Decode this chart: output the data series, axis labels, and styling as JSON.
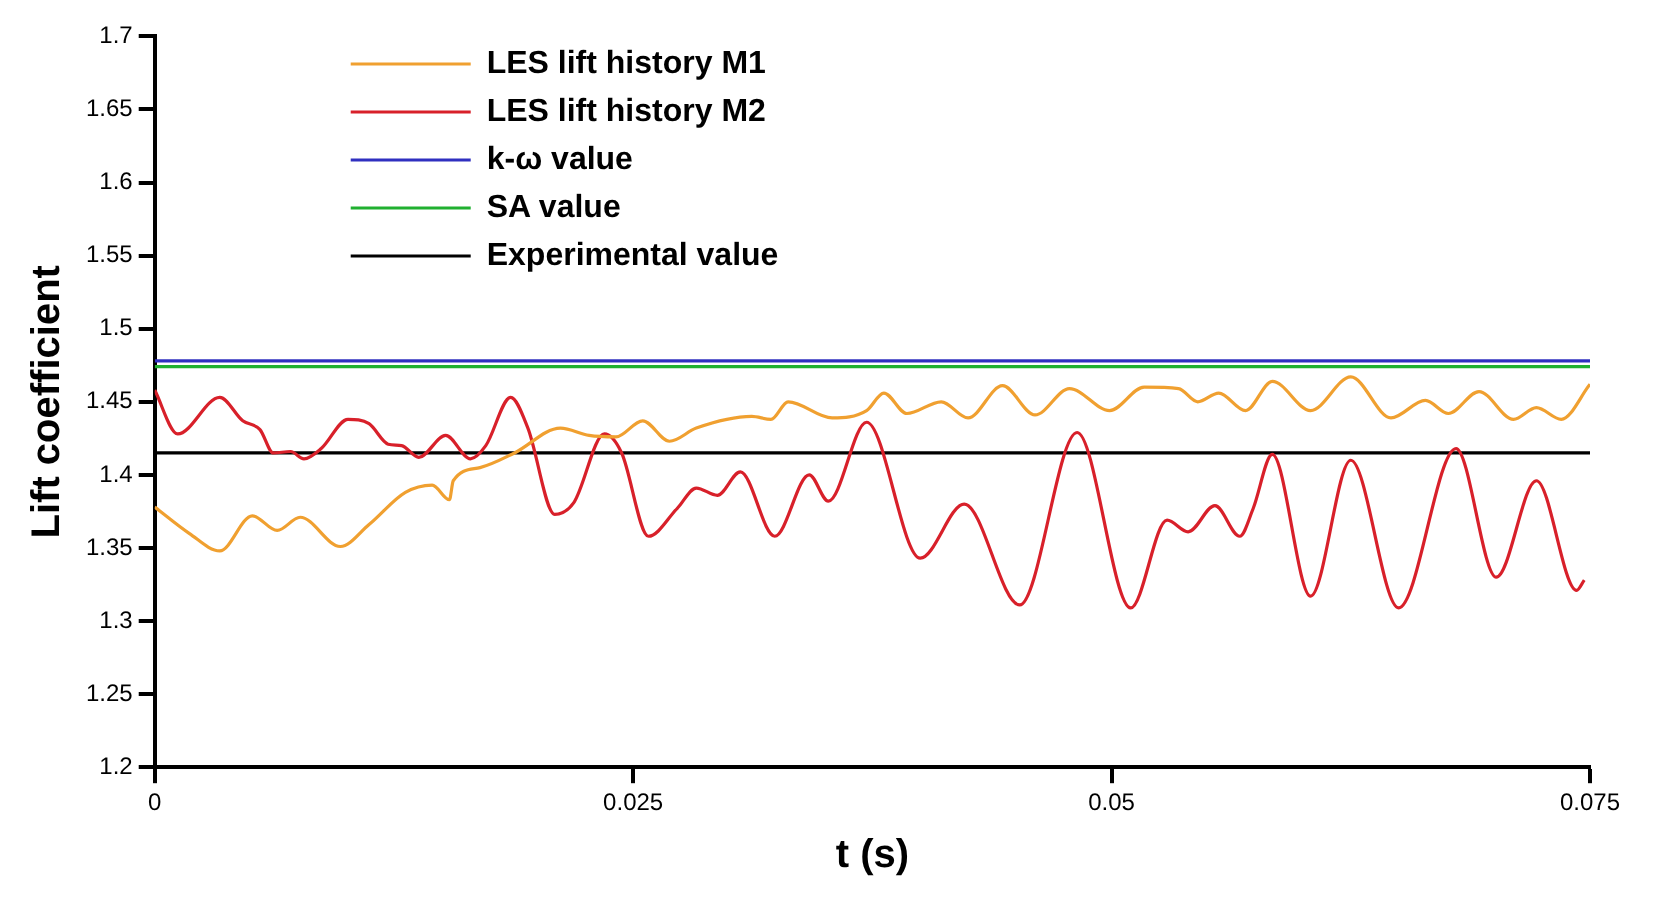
{
  "chart_data": {
    "type": "line",
    "xlabel": "t (s)",
    "ylabel": "Lift coefficient",
    "xlim": [
      0,
      0.075
    ],
    "xticks": [
      0,
      0.025,
      0.05,
      0.075
    ],
    "ylim": [
      1.2,
      1.7
    ],
    "yticks": [
      1.2,
      1.25,
      1.3,
      1.35,
      1.4,
      1.45,
      1.5,
      1.55,
      1.6,
      1.65,
      1.7
    ],
    "grid": false,
    "legend": "top left",
    "marker": "none",
    "line_style": "solid",
    "series": [
      {
        "name": "LES lift history M1",
        "color": "#f0a030",
        "x": [
          0,
          0.0018,
          0.0034,
          0.0051,
          0.0064,
          0.0076,
          0.0097,
          0.0112,
          0.0131,
          0.0145,
          0.0154,
          0.0156,
          0.017,
          0.0188,
          0.0212,
          0.0227,
          0.0241,
          0.0255,
          0.0269,
          0.0283,
          0.0312,
          0.0322,
          0.0331,
          0.0354,
          0.0372,
          0.0381,
          0.0393,
          0.0411,
          0.0425,
          0.0443,
          0.046,
          0.0478,
          0.0499,
          0.0517,
          0.0535,
          0.0545,
          0.0556,
          0.057,
          0.0584,
          0.0604,
          0.0625,
          0.0646,
          0.0664,
          0.0676,
          0.0692,
          0.071,
          0.0722,
          0.0735,
          0.075
        ],
        "values": [
          1.378,
          1.36,
          1.348,
          1.372,
          1.362,
          1.371,
          1.351,
          1.366,
          1.388,
          1.393,
          1.383,
          1.396,
          1.405,
          1.415,
          1.432,
          1.427,
          1.426,
          1.437,
          1.423,
          1.432,
          1.44,
          1.438,
          1.45,
          1.439,
          1.444,
          1.456,
          1.442,
          1.45,
          1.439,
          1.461,
          1.441,
          1.459,
          1.444,
          1.46,
          1.459,
          1.45,
          1.456,
          1.444,
          1.464,
          1.444,
          1.467,
          1.439,
          1.451,
          1.442,
          1.457,
          1.438,
          1.446,
          1.438,
          1.462
        ]
      },
      {
        "name": "LES lift history M2",
        "color": "#d8202a",
        "x": [
          0,
          0.0012,
          0.0034,
          0.0046,
          0.0055,
          0.0062,
          0.0071,
          0.0078,
          0.0087,
          0.0101,
          0.0112,
          0.0122,
          0.0129,
          0.0138,
          0.0152,
          0.0165,
          0.0173,
          0.0186,
          0.0195,
          0.0209,
          0.0219,
          0.0235,
          0.0244,
          0.0258,
          0.0273,
          0.0283,
          0.0294,
          0.0306,
          0.0324,
          0.0342,
          0.0352,
          0.0372,
          0.04,
          0.0423,
          0.0452,
          0.0482,
          0.051,
          0.0529,
          0.054,
          0.0554,
          0.0567,
          0.0574,
          0.0584,
          0.0604,
          0.0625,
          0.065,
          0.068,
          0.0701,
          0.0722,
          0.0743,
          0.0747
        ],
        "values": [
          1.458,
          1.428,
          1.453,
          1.437,
          1.431,
          1.415,
          1.416,
          1.411,
          1.418,
          1.438,
          1.435,
          1.421,
          1.42,
          1.412,
          1.427,
          1.411,
          1.42,
          1.453,
          1.432,
          1.373,
          1.381,
          1.428,
          1.415,
          1.358,
          1.377,
          1.391,
          1.386,
          1.402,
          1.358,
          1.4,
          1.382,
          1.436,
          1.343,
          1.38,
          1.311,
          1.429,
          1.309,
          1.369,
          1.361,
          1.379,
          1.358,
          1.377,
          1.414,
          1.317,
          1.41,
          1.309,
          1.418,
          1.33,
          1.396,
          1.321,
          1.328
        ]
      },
      {
        "name": "k-ω value",
        "color": "#3030c0",
        "x": [
          0,
          0.075
        ],
        "values": [
          1.478,
          1.478
        ]
      },
      {
        "name": "SA value",
        "color": "#20b030",
        "x": [
          0,
          0.075
        ],
        "values": [
          1.474,
          1.474
        ]
      },
      {
        "name": "Experimental value",
        "color": "#000000",
        "x": [
          0,
          0.075
        ],
        "values": [
          1.415,
          1.415
        ]
      }
    ]
  }
}
